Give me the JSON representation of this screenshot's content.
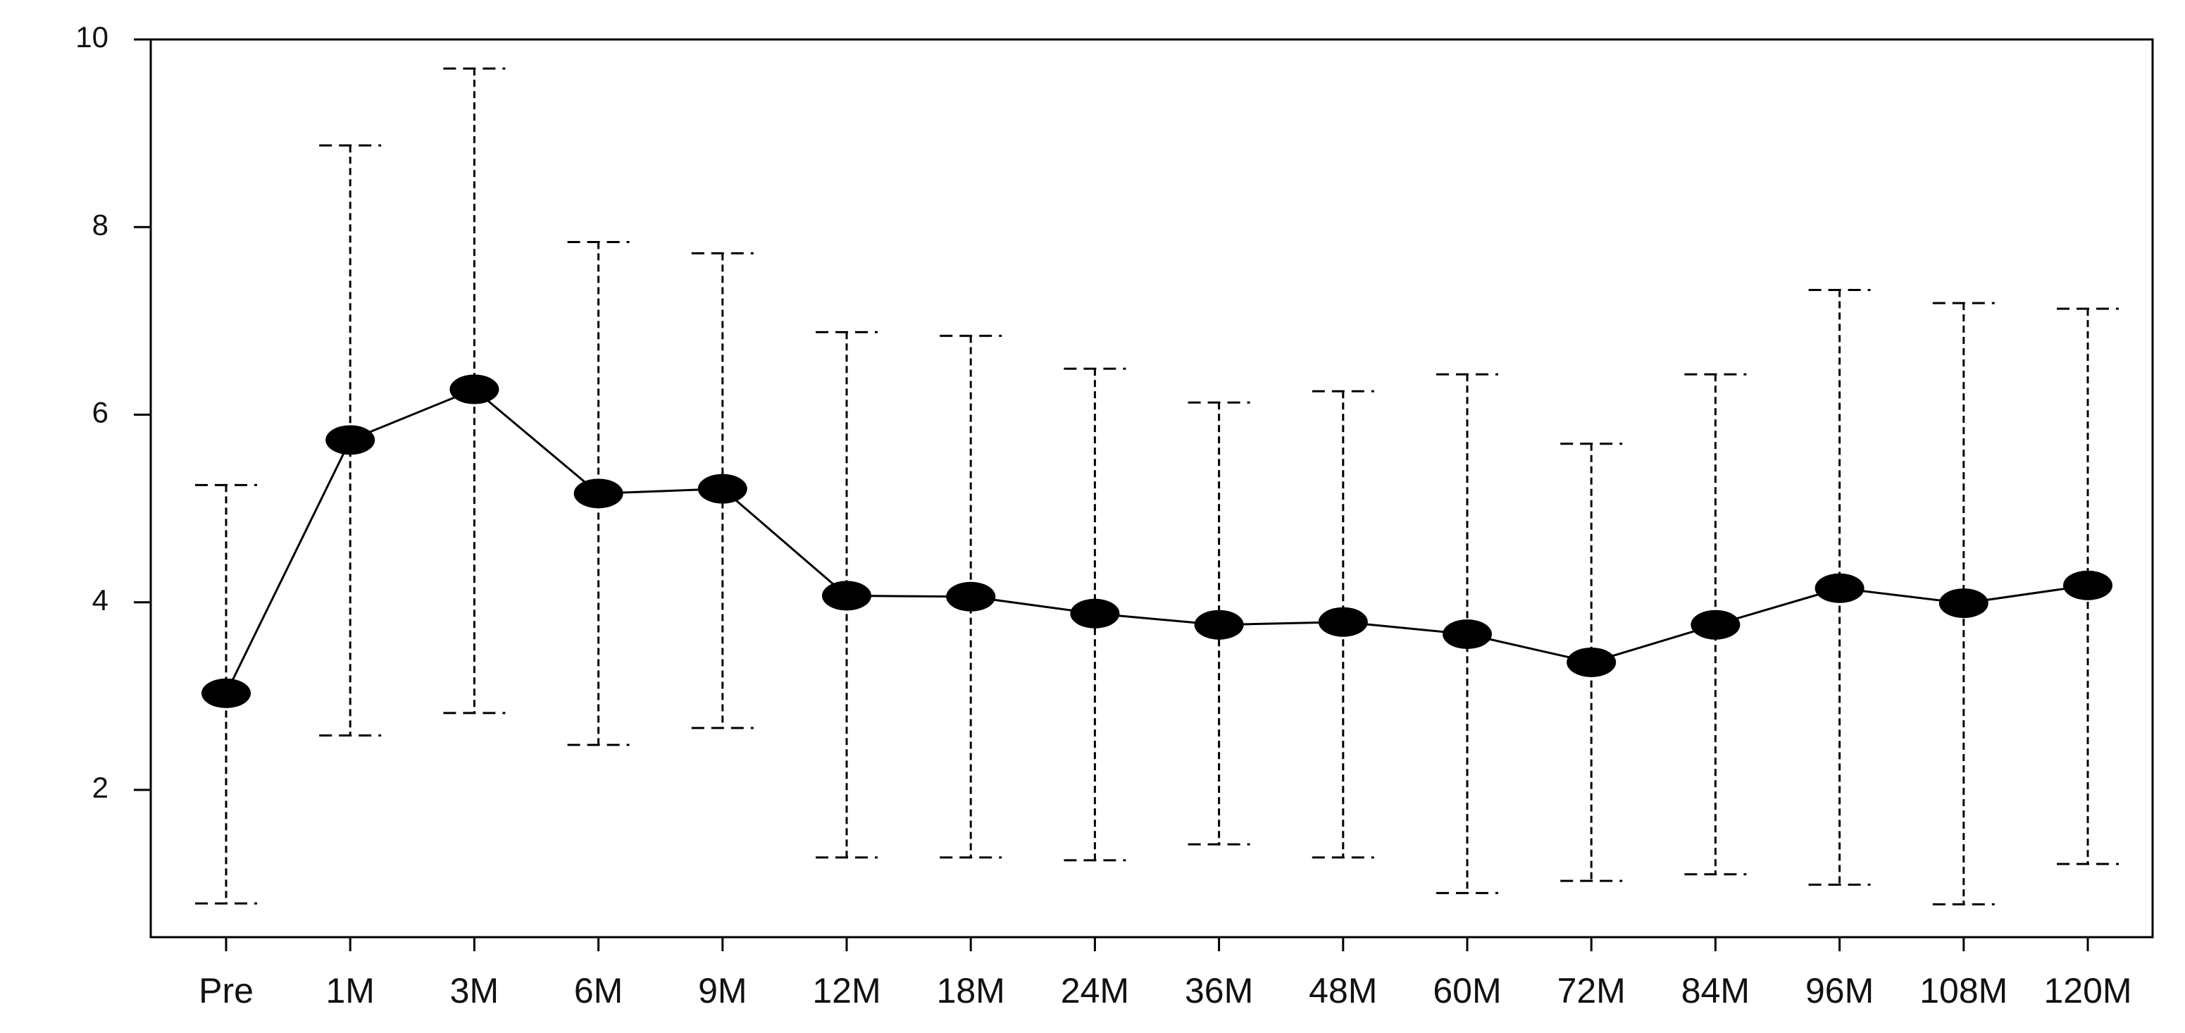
{
  "chart_data": {
    "type": "line",
    "categories": [
      "Pre",
      "1M",
      "3M",
      "6M",
      "9M",
      "12M",
      "18M",
      "24M",
      "36M",
      "48M",
      "60M",
      "72M",
      "84M",
      "96M",
      "108M",
      "120M"
    ],
    "values": [
      3.03,
      5.73,
      6.27,
      5.16,
      5.21,
      4.07,
      4.06,
      3.88,
      3.76,
      3.79,
      3.66,
      3.36,
      3.76,
      4.15,
      3.99,
      4.18
    ],
    "upper": [
      5.25,
      8.87,
      9.69,
      7.84,
      7.72,
      6.88,
      6.84,
      6.49,
      6.13,
      6.25,
      6.43,
      5.69,
      6.43,
      7.33,
      7.19,
      7.13
    ],
    "lower": [
      0.79,
      2.58,
      2.82,
      2.48,
      2.66,
      1.28,
      1.28,
      1.25,
      1.42,
      1.28,
      0.9,
      1.03,
      1.1,
      0.99,
      0.78,
      1.21
    ],
    "color": "#000000",
    "ylim": [
      0.43,
      10
    ],
    "yticks": [
      2,
      4,
      6,
      8,
      10
    ]
  }
}
